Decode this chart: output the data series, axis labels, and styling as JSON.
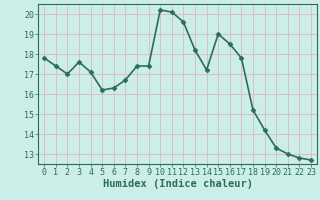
{
  "x": [
    0,
    1,
    2,
    3,
    4,
    5,
    6,
    7,
    8,
    9,
    10,
    11,
    12,
    13,
    14,
    15,
    16,
    17,
    18,
    19,
    20,
    21,
    22,
    23
  ],
  "y": [
    17.8,
    17.4,
    17.0,
    17.6,
    17.1,
    16.2,
    16.3,
    16.7,
    17.4,
    17.4,
    20.2,
    20.1,
    19.6,
    18.2,
    17.2,
    19.0,
    18.5,
    17.8,
    15.2,
    14.2,
    13.3,
    13.0,
    12.8,
    12.7
  ],
  "line_color": "#2d6b5e",
  "marker": "D",
  "marker_size": 2.5,
  "bg_color": "#cceee8",
  "grid_color": "#e0b8b8",
  "xlabel": "Humidex (Indice chaleur)",
  "ylim": [
    12.5,
    20.5
  ],
  "xlim": [
    -0.5,
    23.5
  ],
  "yticks": [
    13,
    14,
    15,
    16,
    17,
    18,
    19,
    20
  ],
  "xticks": [
    0,
    1,
    2,
    3,
    4,
    5,
    6,
    7,
    8,
    9,
    10,
    11,
    12,
    13,
    14,
    15,
    16,
    17,
    18,
    19,
    20,
    21,
    22,
    23
  ],
  "xlabel_fontsize": 7.5,
  "tick_fontsize": 6,
  "line_width": 1.2,
  "spine_color": "#2d6b5e"
}
